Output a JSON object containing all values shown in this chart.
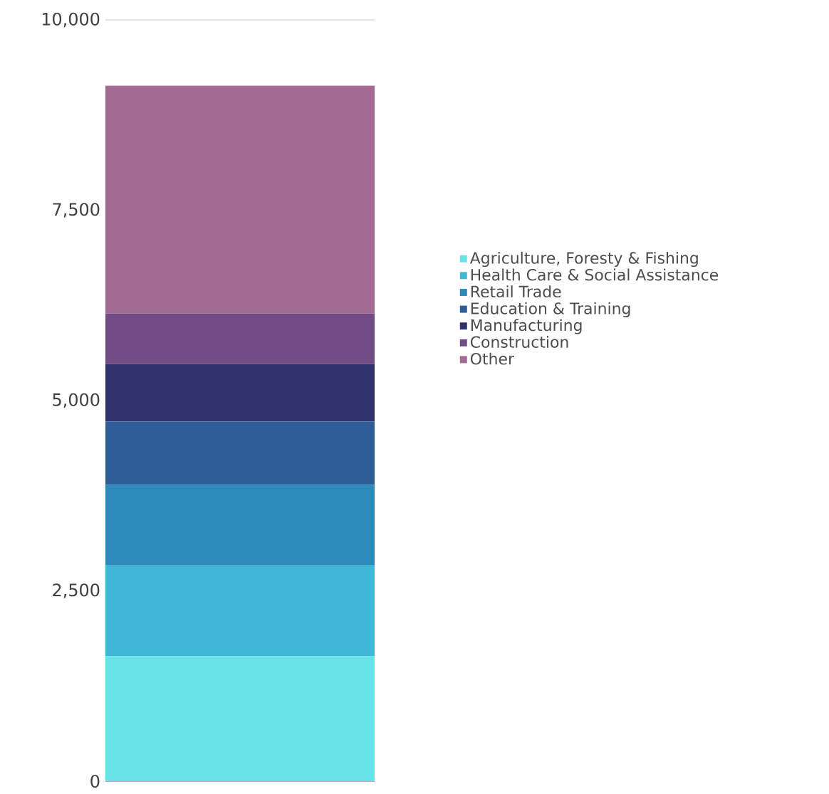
{
  "chart_data": {
    "type": "bar",
    "stacked": true,
    "categories": [
      null
    ],
    "series": [
      {
        "name": "Agriculture, Foresty & Fishing",
        "color": "#6ae3e8",
        "values": [
          1640
        ]
      },
      {
        "name": "Health Care & Social Assistance",
        "color": "#42b6d7",
        "values": [
          1195
        ]
      },
      {
        "name": "Retail Trade",
        "color": "#2e8aba",
        "values": [
          1060
        ]
      },
      {
        "name": "Education & Training",
        "color": "#2e5d98",
        "values": [
          830
        ]
      },
      {
        "name": "Manufacturing",
        "color": "#2f336b",
        "values": [
          755
        ]
      },
      {
        "name": "Construction",
        "color": "#714c85",
        "values": [
          665
        ]
      },
      {
        "name": "Other",
        "color": "#a36b94",
        "values": [
          2990
        ]
      }
    ],
    "ylim": [
      0,
      10000
    ],
    "yticks": [
      {
        "value": 0,
        "label": "0"
      },
      {
        "value": 2500,
        "label": "2,500"
      },
      {
        "value": 5000,
        "label": "5,000"
      },
      {
        "value": 7500,
        "label": "7,500"
      },
      {
        "value": 10000,
        "label": "10,000"
      }
    ],
    "grid": "y",
    "legend": "right"
  }
}
